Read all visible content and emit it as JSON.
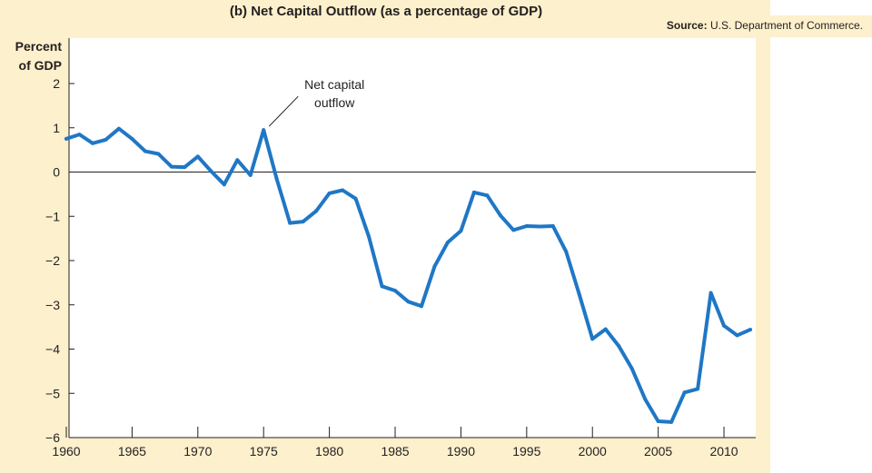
{
  "chart_data": {
    "type": "line",
    "title": "(b) Net Capital Outflow (as a percentage of GDP)",
    "source_label": "Source:",
    "source_text": "U.S. Department of Commerce.",
    "ylabel_line1": "Percent",
    "ylabel_line2": "of GDP",
    "xlabel": "",
    "xlim": [
      1960,
      2013
    ],
    "ylim": [
      -6,
      2.4
    ],
    "xticks": [
      1960,
      1965,
      1970,
      1975,
      1980,
      1985,
      1990,
      1995,
      2000,
      2005,
      2010
    ],
    "yticks": [
      2,
      1,
      0,
      -1,
      -2,
      -3,
      -4,
      -5,
      -6
    ],
    "ytick_labels": [
      "2",
      "1",
      "0",
      "−1",
      "−2",
      "−3",
      "−4",
      "−5",
      "−6"
    ],
    "annotation": {
      "line1": "Net capital",
      "line2": "outflow",
      "x": 1975,
      "y": 0.95
    },
    "background_color": "#fdf0cc",
    "line_color": "#1f77c5",
    "series": [
      {
        "x": [
          1960,
          1961,
          1962,
          1963,
          1964,
          1965,
          1966,
          1967,
          1968,
          1969,
          1970,
          1971,
          1972,
          1973,
          1974,
          1975,
          1976,
          1977,
          1978,
          1979,
          1980,
          1981,
          1982,
          1983,
          1984,
          1985,
          1986,
          1987,
          1988,
          1989,
          1990,
          1991,
          1992,
          1993,
          1994,
          1995,
          1996,
          1997,
          1998,
          1999,
          2000,
          2001,
          2002,
          2003,
          2004,
          2005,
          2006,
          2007,
          2008,
          2009,
          2010,
          2011,
          2012
        ],
        "y": [
          0.75,
          0.85,
          0.65,
          0.73,
          0.98,
          0.75,
          0.47,
          0.41,
          0.12,
          0.11,
          0.35,
          0.02,
          -0.28,
          0.27,
          -0.07,
          0.95,
          -0.16,
          -1.15,
          -1.12,
          -0.88,
          -0.48,
          -0.41,
          -0.6,
          -1.46,
          -2.58,
          -2.68,
          -2.93,
          -3.03,
          -2.13,
          -1.59,
          -1.33,
          -0.46,
          -0.53,
          -0.98,
          -1.31,
          -1.22,
          -1.23,
          -1.22,
          -1.8,
          -2.77,
          -3.77,
          -3.55,
          -3.93,
          -4.44,
          -5.13,
          -5.63,
          -5.65,
          -4.98,
          -4.9,
          -2.73,
          -3.47,
          -3.69,
          -3.56
        ]
      }
    ]
  }
}
